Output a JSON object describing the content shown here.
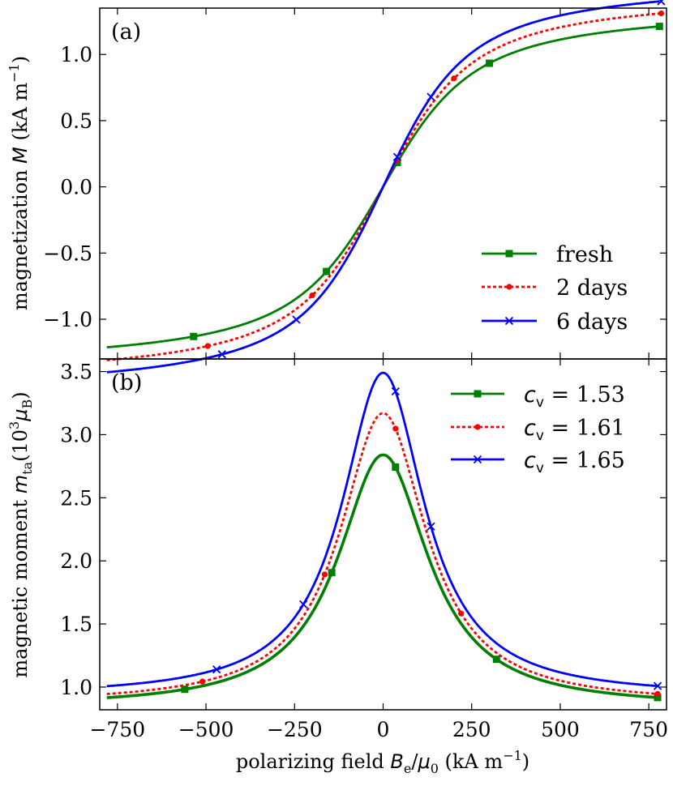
{
  "chart_data": [
    {
      "type": "line",
      "panel_label": "(a)",
      "ylabel": "magnetization M (kA m−1)",
      "ylabel_parts": {
        "pre": "magnetization ",
        "var": "M",
        "unit": " (kA m",
        "sup": "−1",
        "close": ")"
      },
      "xlim": [
        -800,
        800
      ],
      "ylim": [
        -1.3,
        1.35
      ],
      "yticks": [
        -1.0,
        -0.5,
        0.0,
        0.5,
        1.0
      ],
      "ytick_labels": [
        "−1.0",
        "−0.5",
        "0.0",
        "0.5",
        "1.0"
      ],
      "legend_position": "bottom-right",
      "series": [
        {
          "name": "fresh",
          "label": "fresh",
          "color": "#007f00",
          "dash": "",
          "marker": "square",
          "curve": "langevin",
          "params": {
            "a": 1.39,
            "b": 100
          },
          "markers_x": [
            -535,
            -160,
            40,
            300,
            780
          ]
        },
        {
          "name": "2 days",
          "label": "2 days",
          "color": "#ff0000",
          "dash": "4,3",
          "marker": "dot",
          "curve": "langevin",
          "params": {
            "a": 1.495,
            "b": 97
          },
          "markers_x": [
            -495,
            -200,
            40,
            200,
            785
          ]
        },
        {
          "name": "6 days",
          "label": "6 days",
          "color": "#0000ff",
          "dash": "",
          "marker": "x",
          "curve": "langevin",
          "params": {
            "a": 1.59,
            "b": 93
          },
          "markers_x": [
            -455,
            -245,
            40,
            135,
            785
          ]
        }
      ]
    },
    {
      "type": "line",
      "panel_label": "(b)",
      "ylabel": "magnetic moment m_ta (10^3 μ_B)",
      "xlabel": "polarizing field B_e/μ_0 (kA m−1)",
      "xlabel_parts": {
        "pre": "polarizing field ",
        "var": "B",
        "sub": "e",
        "slash": "/",
        "mu": "μ",
        "musub": "0",
        "unit": "  (kA m",
        "sup": "−1",
        "close": ")"
      },
      "ylabel_parts": {
        "pre": "magnetic moment ",
        "var": "m",
        "sub": "ta",
        "open": "(10",
        "sup": "3",
        "mu": "μ",
        "musub": "B",
        "close": ")"
      },
      "xlim": [
        -800,
        800
      ],
      "ylim": [
        0.82,
        3.6
      ],
      "xticks": [
        -750,
        -500,
        -250,
        0,
        250,
        500,
        750
      ],
      "xtick_labels": [
        "−750",
        "−500",
        "−250",
        "0",
        "250",
        "500",
        "750"
      ],
      "yticks": [
        1.0,
        1.5,
        2.0,
        2.5,
        3.0,
        3.5
      ],
      "ytick_labels": [
        "1.0",
        "1.5",
        "2.0",
        "2.5",
        "3.0",
        "3.5"
      ],
      "legend_position": "top-right",
      "series": [
        {
          "name": "c_v = 1.53",
          "label_var": "c",
          "label_sub": "v",
          "label_val": " = 1.53",
          "color": "#007f00",
          "dash": "",
          "marker": "square",
          "stroke_width": 3.6,
          "curve": "lorentz",
          "params": {
            "base": 0.84,
            "peak": 2.84,
            "width": 155
          },
          "markers_x": [
            -560,
            -145,
            35,
            320,
            775
          ]
        },
        {
          "name": "c_v = 1.61",
          "label_var": "c",
          "label_sub": "v",
          "label_val": " = 1.61",
          "color": "#ff0000",
          "dash": "4,3",
          "marker": "dot",
          "stroke_width": 2.8,
          "curve": "lorentz",
          "params": {
            "base": 0.865,
            "peak": 3.17,
            "width": 148
          },
          "markers_x": [
            -510,
            -165,
            35,
            220,
            775
          ]
        },
        {
          "name": "c_v = 1.65",
          "label_var": "c",
          "label_sub": "v",
          "label_val": " = 1.65",
          "color": "#0000ff",
          "dash": "",
          "marker": "x",
          "stroke_width": 2.8,
          "curve": "lorentz",
          "params": {
            "base": 0.925,
            "peak": 3.49,
            "width": 142
          },
          "markers_x": [
            -470,
            -225,
            35,
            135,
            775
          ]
        }
      ]
    }
  ]
}
